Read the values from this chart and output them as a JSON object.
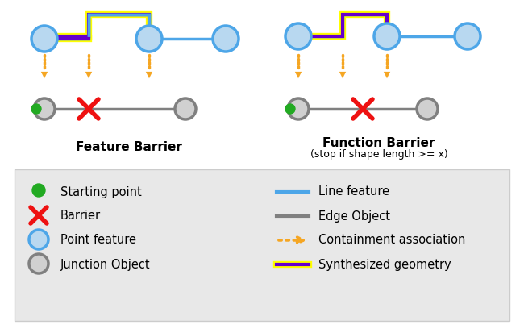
{
  "bg_color": "#ffffff",
  "legend_bg": "#e8e8e8",
  "blue_line_color": "#4da6e8",
  "gray_line_color": "#808080",
  "orange_color": "#f5a623",
  "purple_color": "#6600cc",
  "yellow_color": "#ffff00",
  "green_color": "#22aa22",
  "red_color": "#ee1111",
  "node_fill_blue": "#b8d8f0",
  "node_edge_blue": "#4da6e8",
  "node_fill_gray": "#d0d0d0",
  "node_edge_gray": "#808080",
  "feature_barrier_label": "Feature Barrier",
  "function_barrier_label": "Function Barrier",
  "function_barrier_sub": "(stop if shape length >= x)",
  "legend_items": [
    {
      "symbol": "green_circle",
      "label": "Starting point"
    },
    {
      "symbol": "red_x",
      "label": "Barrier"
    },
    {
      "symbol": "blue_circle",
      "label": "Point feature"
    },
    {
      "symbol": "gray_circle",
      "label": "Junction Object"
    },
    {
      "symbol": "blue_line",
      "label": "Line feature"
    },
    {
      "symbol": "gray_line",
      "label": "Edge Object"
    },
    {
      "symbol": "orange_arrow",
      "label": "Containment association"
    },
    {
      "symbol": "synth_line",
      "label": "Synthesized geometry"
    }
  ]
}
